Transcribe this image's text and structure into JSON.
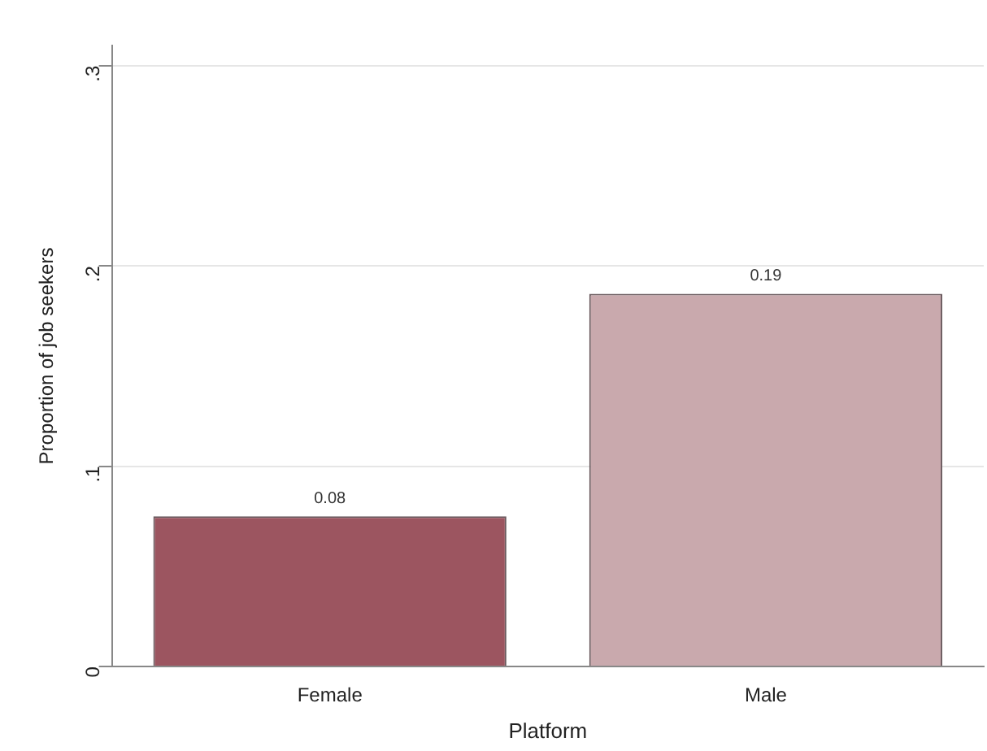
{
  "chart_data": {
    "type": "bar",
    "xlabel": "Platform",
    "ylabel": "Proportion of job seekers",
    "categories": [
      "Female",
      "Male"
    ],
    "values": [
      0.075,
      0.186
    ],
    "colors": [
      "#9c5560",
      "#c9a9ad"
    ],
    "value_labels": [
      "0.08",
      "0.19"
    ],
    "ylim": [
      0,
      0.31
    ],
    "yticks": [
      0,
      {
        "value": 0.1,
        "label": ".1"
      },
      {
        "value": 0.2,
        "label": ".2"
      },
      {
        "value": 0.3,
        "label": ".3"
      }
    ],
    "grid": "y"
  }
}
